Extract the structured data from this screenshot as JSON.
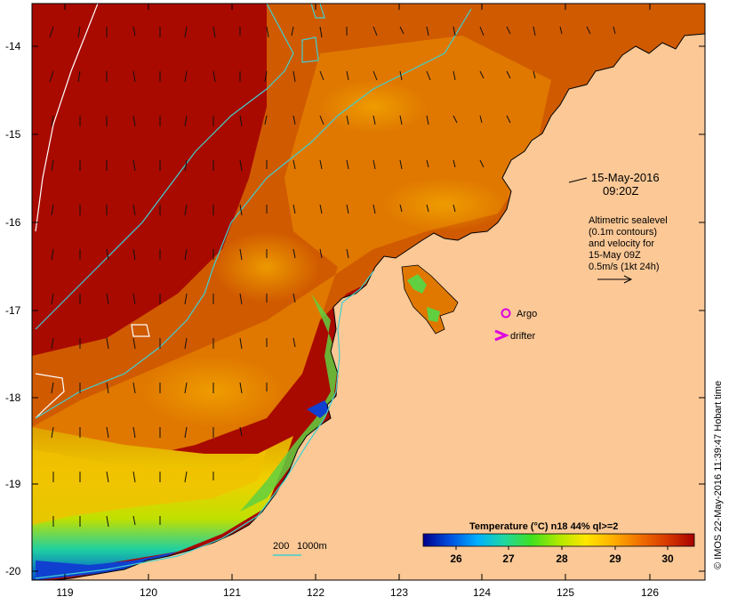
{
  "map": {
    "date_line": "15-May-2016",
    "time_line": "09:20Z",
    "altimetry_lines": [
      "Altimetric sealevel",
      "(0.1m contours)",
      "and velocity for",
      "15-May 09Z",
      "0.5m/s (1kt 24h)"
    ],
    "argo_label": "Argo",
    "drifter_label": "drifter",
    "depth_label_1": "200",
    "depth_label_2": "1000m",
    "side_caption": "© IMOS 22-May-2016 11:39:47 Hobart time",
    "lat_ticks": [
      "-14",
      "-15",
      "-16",
      "-17",
      "-18",
      "-19",
      "-20"
    ],
    "lon_ticks": [
      "119",
      "120",
      "121",
      "122",
      "123",
      "124",
      "125",
      "126"
    ]
  },
  "colorbar": {
    "title": "Temperature (°C) n18 44% ql>=2",
    "ticks": [
      "26",
      "27",
      "28",
      "29",
      "30"
    ],
    "colors": [
      "#00008b",
      "#0050e0",
      "#00b0ff",
      "#20d8a0",
      "#40e020",
      "#b0e800",
      "#ffe600",
      "#ffb000",
      "#f07000",
      "#d83800",
      "#a80000"
    ]
  },
  "colors": {
    "land": "#fbc896",
    "sea_hot": "#a80a00",
    "contour": "#40d0d0",
    "argo": "#e000e0",
    "drifter": "#e000e0"
  }
}
